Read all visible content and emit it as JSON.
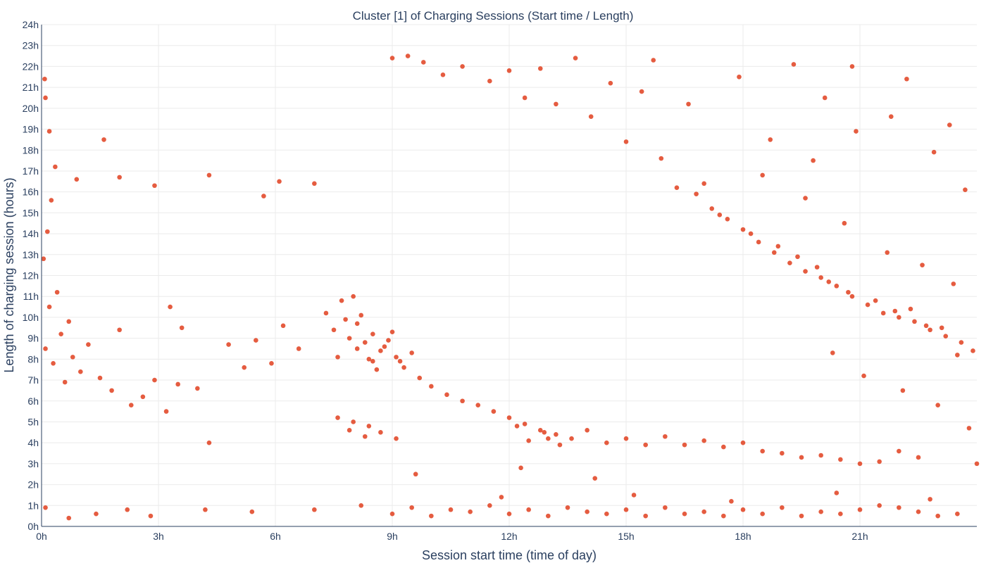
{
  "chart_data": {
    "type": "scatter",
    "title": "Cluster [1] of Charging Sessions (Start time / Length)",
    "xlabel": "Session start time (time of day)",
    "ylabel": "Length of charging session (hours)",
    "xlim": [
      0,
      24
    ],
    "ylim": [
      0,
      24
    ],
    "x_ticks": [
      {
        "value": 0,
        "label": "0h"
      },
      {
        "value": 3,
        "label": "3h"
      },
      {
        "value": 6,
        "label": "6h"
      },
      {
        "value": 9,
        "label": "9h"
      },
      {
        "value": 12,
        "label": "12h"
      },
      {
        "value": 15,
        "label": "15h"
      },
      {
        "value": 18,
        "label": "18h"
      },
      {
        "value": 21,
        "label": "21h"
      }
    ],
    "y_ticks": [
      {
        "value": 0,
        "label": "0h"
      },
      {
        "value": 1,
        "label": "1h"
      },
      {
        "value": 2,
        "label": "2h"
      },
      {
        "value": 3,
        "label": "3h"
      },
      {
        "value": 4,
        "label": "4h"
      },
      {
        "value": 5,
        "label": "5h"
      },
      {
        "value": 6,
        "label": "6h"
      },
      {
        "value": 7,
        "label": "7h"
      },
      {
        "value": 8,
        "label": "8h"
      },
      {
        "value": 9,
        "label": "9h"
      },
      {
        "value": 10,
        "label": "10h"
      },
      {
        "value": 11,
        "label": "11h"
      },
      {
        "value": 12,
        "label": "12h"
      },
      {
        "value": 13,
        "label": "13h"
      },
      {
        "value": 14,
        "label": "14h"
      },
      {
        "value": 15,
        "label": "15h"
      },
      {
        "value": 16,
        "label": "16h"
      },
      {
        "value": 17,
        "label": "17h"
      },
      {
        "value": 18,
        "label": "18h"
      },
      {
        "value": 19,
        "label": "19h"
      },
      {
        "value": 20,
        "label": "20h"
      },
      {
        "value": 21,
        "label": "21h"
      },
      {
        "value": 22,
        "label": "22h"
      },
      {
        "value": 23,
        "label": "23h"
      },
      {
        "value": 24,
        "label": "24h"
      }
    ],
    "grid": true,
    "marker_color": "#e0401e",
    "series": [
      {
        "points": [
          [
            0.1,
            8.5
          ],
          [
            0.3,
            7.8
          ],
          [
            0.5,
            9.2
          ],
          [
            0.2,
            10.5
          ],
          [
            0.6,
            6.9
          ],
          [
            0.8,
            8.1
          ],
          [
            1.0,
            7.4
          ],
          [
            0.4,
            11.2
          ],
          [
            0.7,
            9.8
          ],
          [
            1.2,
            8.7
          ],
          [
            1.5,
            7.1
          ],
          [
            1.8,
            6.5
          ],
          [
            2.0,
            9.4
          ],
          [
            2.3,
            5.8
          ],
          [
            2.6,
            6.2
          ],
          [
            2.9,
            7.0
          ],
          [
            3.2,
            5.5
          ],
          [
            3.5,
            6.8
          ],
          [
            0.05,
            12.8
          ],
          [
            0.15,
            14.1
          ],
          [
            0.25,
            15.6
          ],
          [
            0.35,
            17.2
          ],
          [
            0.2,
            18.9
          ],
          [
            0.1,
            20.5
          ],
          [
            0.08,
            21.4
          ],
          [
            0.9,
            16.6
          ],
          [
            1.6,
            18.5
          ],
          [
            2.0,
            16.7
          ],
          [
            2.9,
            16.3
          ],
          [
            3.3,
            10.5
          ],
          [
            3.6,
            9.5
          ],
          [
            4.0,
            6.6
          ],
          [
            4.3,
            4.0
          ],
          [
            4.8,
            8.7
          ],
          [
            5.2,
            7.6
          ],
          [
            5.5,
            8.9
          ],
          [
            5.9,
            7.8
          ],
          [
            6.2,
            9.6
          ],
          [
            6.6,
            8.5
          ],
          [
            5.7,
            15.8
          ],
          [
            6.1,
            16.5
          ],
          [
            4.3,
            16.8
          ],
          [
            7.0,
            16.4
          ],
          [
            0.1,
            0.9
          ],
          [
            0.7,
            0.4
          ],
          [
            1.4,
            0.6
          ],
          [
            2.2,
            0.8
          ],
          [
            2.8,
            0.5
          ],
          [
            4.2,
            0.8
          ],
          [
            5.4,
            0.7
          ],
          [
            7.0,
            0.8
          ],
          [
            7.3,
            10.2
          ],
          [
            7.5,
            9.4
          ],
          [
            7.7,
            10.8
          ],
          [
            7.9,
            9.0
          ],
          [
            8.1,
            9.7
          ],
          [
            8.3,
            8.8
          ],
          [
            8.5,
            9.2
          ],
          [
            8.7,
            8.4
          ],
          [
            8.9,
            8.9
          ],
          [
            9.1,
            8.1
          ],
          [
            9.3,
            7.6
          ],
          [
            9.5,
            8.3
          ],
          [
            7.6,
            8.1
          ],
          [
            7.8,
            9.9
          ],
          [
            8.0,
            11.0
          ],
          [
            8.2,
            10.1
          ],
          [
            8.4,
            8.0
          ],
          [
            8.6,
            7.5
          ],
          [
            8.8,
            8.6
          ],
          [
            9.0,
            9.3
          ],
          [
            9.2,
            7.9
          ],
          [
            8.1,
            8.5
          ],
          [
            8.5,
            7.9
          ],
          [
            9.7,
            7.1
          ],
          [
            10.0,
            6.7
          ],
          [
            10.4,
            6.3
          ],
          [
            10.8,
            6.0
          ],
          [
            11.2,
            5.8
          ],
          [
            11.6,
            5.5
          ],
          [
            12.0,
            5.2
          ],
          [
            12.4,
            4.9
          ],
          [
            12.8,
            4.6
          ],
          [
            13.2,
            4.4
          ],
          [
            13.6,
            4.2
          ],
          [
            7.9,
            4.6
          ],
          [
            8.3,
            4.3
          ],
          [
            8.7,
            4.5
          ],
          [
            9.1,
            4.2
          ],
          [
            7.6,
            5.2
          ],
          [
            8.0,
            5.0
          ],
          [
            8.4,
            4.8
          ],
          [
            12.5,
            4.1
          ],
          [
            12.9,
            4.5
          ],
          [
            13.3,
            3.9
          ],
          [
            12.2,
            4.8
          ],
          [
            13.0,
            4.2
          ],
          [
            14.0,
            4.6
          ],
          [
            14.5,
            4.0
          ],
          [
            15.0,
            4.2
          ],
          [
            15.5,
            3.9
          ],
          [
            16.0,
            4.3
          ],
          [
            16.5,
            3.9
          ],
          [
            17.0,
            4.1
          ],
          [
            17.5,
            3.8
          ],
          [
            18.0,
            4.0
          ],
          [
            18.5,
            3.6
          ],
          [
            19.0,
            3.5
          ],
          [
            19.5,
            3.3
          ],
          [
            20.0,
            3.4
          ],
          [
            20.5,
            3.2
          ],
          [
            21.0,
            3.0
          ],
          [
            21.5,
            3.1
          ],
          [
            22.0,
            3.6
          ],
          [
            22.5,
            3.3
          ],
          [
            9.0,
            22.4
          ],
          [
            9.4,
            22.5
          ],
          [
            9.8,
            22.2
          ],
          [
            10.3,
            21.6
          ],
          [
            10.8,
            22.0
          ],
          [
            11.5,
            21.3
          ],
          [
            12.0,
            21.8
          ],
          [
            12.4,
            20.5
          ],
          [
            12.8,
            21.9
          ],
          [
            13.2,
            20.2
          ],
          [
            13.7,
            22.4
          ],
          [
            14.1,
            19.6
          ],
          [
            14.6,
            21.2
          ],
          [
            15.0,
            18.4
          ],
          [
            15.4,
            20.8
          ],
          [
            15.9,
            17.6
          ],
          [
            16.3,
            16.2
          ],
          [
            16.8,
            15.9
          ],
          [
            17.2,
            15.2
          ],
          [
            17.6,
            14.7
          ],
          [
            18.0,
            14.2
          ],
          [
            18.4,
            13.6
          ],
          [
            18.8,
            13.1
          ],
          [
            19.2,
            12.6
          ],
          [
            19.6,
            12.2
          ],
          [
            20.0,
            11.9
          ],
          [
            20.4,
            11.5
          ],
          [
            20.8,
            11.0
          ],
          [
            21.2,
            10.6
          ],
          [
            21.6,
            10.2
          ],
          [
            22.0,
            10.0
          ],
          [
            22.4,
            9.8
          ],
          [
            22.8,
            9.4
          ],
          [
            23.2,
            9.1
          ],
          [
            23.6,
            8.8
          ],
          [
            23.9,
            8.4
          ],
          [
            17.4,
            14.9
          ],
          [
            18.2,
            14.0
          ],
          [
            18.9,
            13.4
          ],
          [
            19.4,
            12.9
          ],
          [
            19.9,
            12.4
          ],
          [
            20.2,
            11.7
          ],
          [
            20.7,
            11.2
          ],
          [
            21.4,
            10.8
          ],
          [
            21.9,
            10.3
          ],
          [
            22.3,
            10.4
          ],
          [
            22.7,
            9.6
          ],
          [
            23.1,
            9.5
          ],
          [
            23.5,
            8.2
          ],
          [
            17.0,
            16.4
          ],
          [
            18.5,
            16.8
          ],
          [
            19.8,
            17.5
          ],
          [
            20.9,
            18.9
          ],
          [
            21.8,
            19.6
          ],
          [
            22.9,
            17.9
          ],
          [
            23.7,
            16.1
          ],
          [
            19.3,
            22.1
          ],
          [
            20.1,
            20.5
          ],
          [
            20.8,
            22.0
          ],
          [
            22.2,
            21.4
          ],
          [
            23.3,
            19.2
          ],
          [
            17.9,
            21.5
          ],
          [
            16.6,
            20.2
          ],
          [
            15.7,
            22.3
          ],
          [
            18.7,
            18.5
          ],
          [
            19.6,
            15.7
          ],
          [
            20.6,
            14.5
          ],
          [
            21.7,
            13.1
          ],
          [
            22.6,
            12.5
          ],
          [
            23.4,
            11.6
          ],
          [
            21.1,
            7.2
          ],
          [
            22.1,
            6.5
          ],
          [
            23.0,
            5.8
          ],
          [
            23.8,
            4.7
          ],
          [
            20.3,
            8.3
          ],
          [
            9.0,
            0.6
          ],
          [
            9.5,
            0.9
          ],
          [
            10.0,
            0.5
          ],
          [
            10.5,
            0.8
          ],
          [
            11.0,
            0.7
          ],
          [
            11.5,
            1.0
          ],
          [
            12.0,
            0.6
          ],
          [
            12.5,
            0.8
          ],
          [
            13.0,
            0.5
          ],
          [
            13.5,
            0.9
          ],
          [
            14.0,
            0.7
          ],
          [
            14.5,
            0.6
          ],
          [
            15.0,
            0.8
          ],
          [
            15.5,
            0.5
          ],
          [
            16.0,
            0.9
          ],
          [
            16.5,
            0.6
          ],
          [
            17.0,
            0.7
          ],
          [
            17.5,
            0.5
          ],
          [
            18.0,
            0.8
          ],
          [
            18.5,
            0.6
          ],
          [
            19.0,
            0.9
          ],
          [
            19.5,
            0.5
          ],
          [
            20.0,
            0.7
          ],
          [
            20.5,
            0.6
          ],
          [
            21.0,
            0.8
          ],
          [
            21.5,
            1.0
          ],
          [
            22.0,
            0.9
          ],
          [
            22.5,
            0.7
          ],
          [
            23.0,
            0.5
          ],
          [
            23.5,
            0.6
          ],
          [
            8.2,
            1.0
          ],
          [
            11.8,
            1.4
          ],
          [
            15.2,
            1.5
          ],
          [
            17.7,
            1.2
          ],
          [
            20.4,
            1.6
          ],
          [
            22.8,
            1.3
          ],
          [
            9.6,
            2.5
          ],
          [
            12.3,
            2.8
          ],
          [
            14.2,
            2.3
          ],
          [
            24.0,
            3.0
          ]
        ]
      }
    ]
  }
}
